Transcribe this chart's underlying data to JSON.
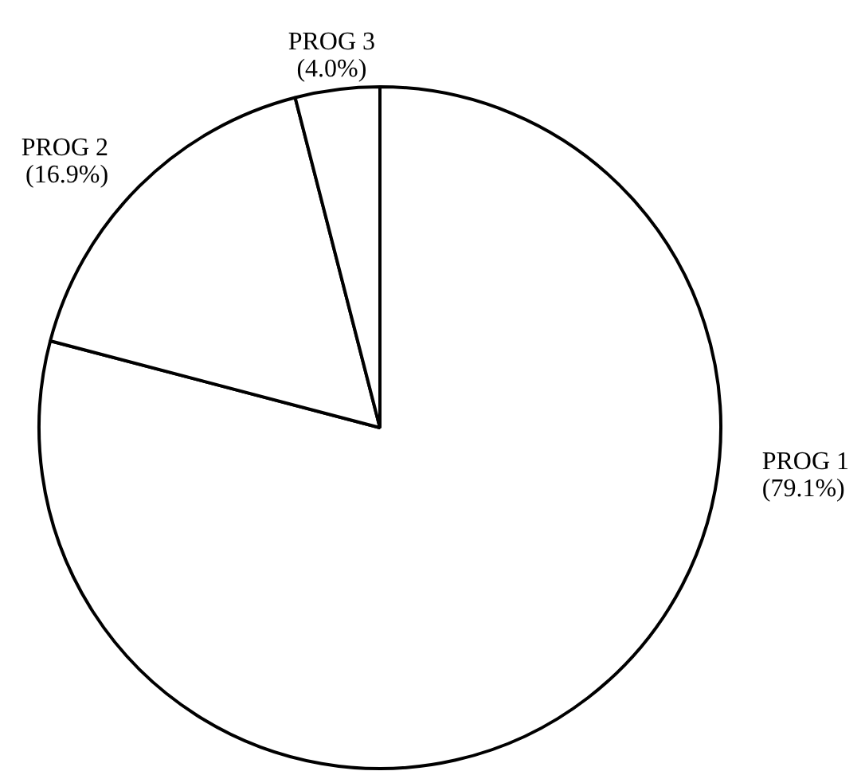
{
  "chart_data": {
    "type": "pie",
    "categories": [
      "PROG 1",
      "PROG 2",
      "PROG 3"
    ],
    "values": [
      79.1,
      16.9,
      4.0
    ],
    "value_labels": [
      "(79.1%)",
      "(16.9%)",
      "(4.0%)"
    ],
    "colors": [
      "#ffffff",
      "#ffffff",
      "#ffffff"
    ]
  }
}
